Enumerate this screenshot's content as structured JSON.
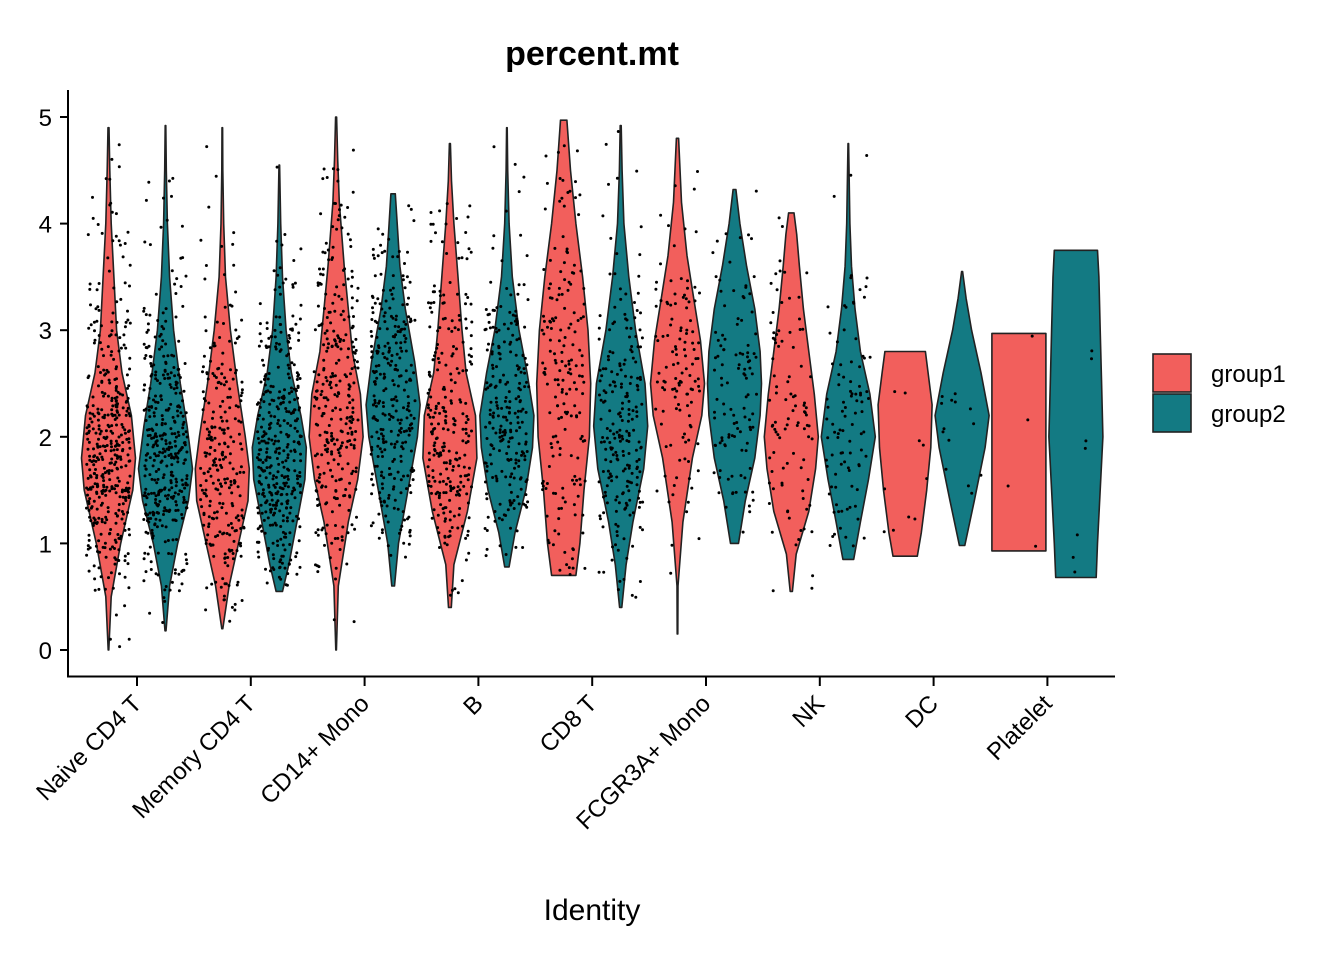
{
  "chart_data": {
    "type": "violin",
    "title": "percent.mt",
    "xlabel": "Identity",
    "ylabel": "",
    "ylim": [
      -0.25,
      5.3
    ],
    "yticks": [
      0,
      1,
      2,
      3,
      4,
      5
    ],
    "categories": [
      "Naive CD4 T",
      "Memory CD4 T",
      "CD14+ Mono",
      "B",
      "CD8 T",
      "FCGR3A+ Mono",
      "NK",
      "DC",
      "Platelet"
    ],
    "legend_position": "right",
    "grid": false,
    "series": [
      {
        "name": "group1",
        "color": "#F25F5C",
        "violins": [
          {
            "min": 0.0,
            "max": 4.9,
            "n": 420,
            "profile": [
              [
                0.0,
                0.01
              ],
              [
                0.5,
                0.1
              ],
              [
                1.0,
                0.45
              ],
              [
                1.5,
                0.9
              ],
              [
                1.8,
                1.0
              ],
              [
                2.2,
                0.85
              ],
              [
                2.6,
                0.5
              ],
              [
                3.0,
                0.3
              ],
              [
                3.5,
                0.2
              ],
              [
                4.0,
                0.1
              ],
              [
                4.5,
                0.05
              ],
              [
                4.9,
                0.02
              ]
            ]
          },
          {
            "min": 0.2,
            "max": 4.9,
            "n": 260,
            "profile": [
              [
                0.2,
                0.02
              ],
              [
                0.6,
                0.25
              ],
              [
                1.0,
                0.6
              ],
              [
                1.4,
                0.95
              ],
              [
                1.7,
                1.0
              ],
              [
                2.0,
                0.85
              ],
              [
                2.5,
                0.55
              ],
              [
                3.0,
                0.3
              ],
              [
                3.5,
                0.12
              ],
              [
                4.0,
                0.05
              ],
              [
                4.5,
                0.02
              ],
              [
                4.9,
                0.01
              ]
            ]
          },
          {
            "min": 0.0,
            "max": 5.0,
            "n": 300,
            "profile": [
              [
                0.0,
                0.01
              ],
              [
                0.6,
                0.08
              ],
              [
                1.2,
                0.45
              ],
              [
                1.6,
                0.8
              ],
              [
                2.0,
                1.0
              ],
              [
                2.4,
                0.9
              ],
              [
                2.8,
                0.6
              ],
              [
                3.2,
                0.45
              ],
              [
                3.6,
                0.3
              ],
              [
                4.2,
                0.12
              ],
              [
                4.6,
                0.06
              ],
              [
                5.0,
                0.02
              ]
            ]
          },
          {
            "min": 0.4,
            "max": 4.75,
            "n": 260,
            "profile": [
              [
                0.4,
                0.05
              ],
              [
                0.8,
                0.15
              ],
              [
                1.3,
                0.65
              ],
              [
                1.8,
                1.0
              ],
              [
                2.2,
                0.95
              ],
              [
                2.6,
                0.6
              ],
              [
                3.0,
                0.45
              ],
              [
                3.5,
                0.3
              ],
              [
                4.0,
                0.15
              ],
              [
                4.4,
                0.06
              ],
              [
                4.75,
                0.02
              ]
            ]
          },
          {
            "min": 0.7,
            "max": 4.97,
            "n": 180,
            "profile": [
              [
                0.7,
                0.45
              ],
              [
                1.0,
                0.6
              ],
              [
                1.5,
                0.75
              ],
              [
                2.0,
                0.95
              ],
              [
                2.5,
                1.0
              ],
              [
                3.0,
                0.9
              ],
              [
                3.5,
                0.7
              ],
              [
                4.0,
                0.45
              ],
              [
                4.5,
                0.25
              ],
              [
                4.97,
                0.12
              ]
            ]
          },
          {
            "min": 0.15,
            "max": 4.8,
            "n": 120,
            "profile": [
              [
                0.15,
                0.01
              ],
              [
                0.6,
                0.02
              ],
              [
                1.2,
                0.2
              ],
              [
                1.8,
                0.55
              ],
              [
                2.2,
                0.9
              ],
              [
                2.5,
                1.0
              ],
              [
                2.9,
                0.85
              ],
              [
                3.3,
                0.6
              ],
              [
                3.7,
                0.35
              ],
              [
                4.2,
                0.15
              ],
              [
                4.8,
                0.04
              ]
            ]
          },
          {
            "min": 0.55,
            "max": 4.1,
            "n": 95,
            "profile": [
              [
                0.55,
                0.04
              ],
              [
                0.9,
                0.18
              ],
              [
                1.3,
                0.65
              ],
              [
                1.7,
                0.9
              ],
              [
                2.0,
                1.0
              ],
              [
                2.4,
                0.85
              ],
              [
                2.8,
                0.65
              ],
              [
                3.2,
                0.45
              ],
              [
                3.6,
                0.3
              ],
              [
                3.9,
                0.2
              ],
              [
                4.1,
                0.1
              ]
            ]
          },
          {
            "min": 0.88,
            "max": 2.8,
            "n": 10,
            "profile": [
              [
                0.88,
                0.45
              ],
              [
                1.1,
                0.6
              ],
              [
                1.5,
                0.8
              ],
              [
                1.9,
                0.95
              ],
              [
                2.3,
                1.0
              ],
              [
                2.6,
                0.85
              ],
              [
                2.8,
                0.75
              ]
            ]
          },
          {
            "min": 0.93,
            "max": 2.97,
            "n": 4,
            "profile": [
              [
                0.93,
                1.0
              ],
              [
                2.97,
                1.0
              ]
            ]
          }
        ]
      },
      {
        "name": "group2",
        "color": "#137A83",
        "violins": [
          {
            "min": 0.18,
            "max": 4.92,
            "n": 380,
            "profile": [
              [
                0.18,
                0.02
              ],
              [
                0.6,
                0.15
              ],
              [
                1.0,
                0.45
              ],
              [
                1.4,
                0.85
              ],
              [
                1.7,
                1.0
              ],
              [
                2.1,
                0.8
              ],
              [
                2.5,
                0.55
              ],
              [
                3.0,
                0.3
              ],
              [
                3.5,
                0.15
              ],
              [
                4.0,
                0.07
              ],
              [
                4.5,
                0.03
              ],
              [
                4.92,
                0.01
              ]
            ]
          },
          {
            "min": 0.55,
            "max": 4.55,
            "n": 380,
            "profile": [
              [
                0.55,
                0.12
              ],
              [
                0.8,
                0.35
              ],
              [
                1.2,
                0.65
              ],
              [
                1.6,
                0.95
              ],
              [
                1.9,
                1.0
              ],
              [
                2.2,
                0.8
              ],
              [
                2.6,
                0.45
              ],
              [
                3.0,
                0.25
              ],
              [
                3.5,
                0.12
              ],
              [
                4.0,
                0.05
              ],
              [
                4.55,
                0.01
              ]
            ]
          },
          {
            "min": 0.6,
            "max": 4.28,
            "n": 290,
            "profile": [
              [
                0.6,
                0.05
              ],
              [
                1.0,
                0.2
              ],
              [
                1.5,
                0.55
              ],
              [
                2.0,
                0.9
              ],
              [
                2.3,
                1.0
              ],
              [
                2.7,
                0.8
              ],
              [
                3.2,
                0.45
              ],
              [
                3.6,
                0.25
              ],
              [
                4.0,
                0.15
              ],
              [
                4.28,
                0.08
              ]
            ]
          },
          {
            "min": 0.78,
            "max": 4.9,
            "n": 240,
            "profile": [
              [
                0.78,
                0.08
              ],
              [
                1.1,
                0.3
              ],
              [
                1.5,
                0.7
              ],
              [
                1.9,
                0.95
              ],
              [
                2.2,
                1.0
              ],
              [
                2.6,
                0.75
              ],
              [
                3.0,
                0.45
              ],
              [
                3.5,
                0.2
              ],
              [
                4.0,
                0.08
              ],
              [
                4.5,
                0.03
              ],
              [
                4.9,
                0.01
              ]
            ]
          },
          {
            "min": 0.4,
            "max": 4.92,
            "n": 220,
            "profile": [
              [
                0.4,
                0.04
              ],
              [
                0.8,
                0.2
              ],
              [
                1.2,
                0.45
              ],
              [
                1.7,
                0.85
              ],
              [
                2.1,
                1.0
              ],
              [
                2.5,
                0.9
              ],
              [
                3.0,
                0.55
              ],
              [
                3.5,
                0.3
              ],
              [
                4.0,
                0.12
              ],
              [
                4.5,
                0.05
              ],
              [
                4.92,
                0.02
              ]
            ]
          },
          {
            "min": 1.0,
            "max": 4.32,
            "n": 110,
            "profile": [
              [
                1.0,
                0.15
              ],
              [
                1.4,
                0.4
              ],
              [
                1.8,
                0.75
              ],
              [
                2.2,
                0.95
              ],
              [
                2.5,
                1.0
              ],
              [
                2.8,
                0.95
              ],
              [
                3.2,
                0.75
              ],
              [
                3.6,
                0.45
              ],
              [
                4.0,
                0.2
              ],
              [
                4.32,
                0.05
              ]
            ]
          },
          {
            "min": 0.85,
            "max": 4.75,
            "n": 95,
            "profile": [
              [
                0.85,
                0.2
              ],
              [
                1.2,
                0.45
              ],
              [
                1.6,
                0.75
              ],
              [
                2.0,
                1.0
              ],
              [
                2.4,
                0.8
              ],
              [
                2.8,
                0.45
              ],
              [
                3.2,
                0.25
              ],
              [
                3.6,
                0.12
              ],
              [
                4.0,
                0.06
              ],
              [
                4.75,
                0.01
              ]
            ]
          },
          {
            "min": 0.98,
            "max": 3.55,
            "n": 14,
            "profile": [
              [
                0.98,
                0.1
              ],
              [
                1.4,
                0.45
              ],
              [
                1.9,
                0.85
              ],
              [
                2.2,
                1.0
              ],
              [
                2.6,
                0.7
              ],
              [
                3.0,
                0.35
              ],
              [
                3.3,
                0.15
              ],
              [
                3.55,
                0.02
              ]
            ]
          },
          {
            "min": 0.68,
            "max": 3.75,
            "n": 7,
            "profile": [
              [
                0.68,
                0.75
              ],
              [
                1.0,
                0.8
              ],
              [
                1.5,
                0.9
              ],
              [
                2.0,
                1.0
              ],
              [
                2.5,
                0.95
              ],
              [
                3.0,
                0.9
              ],
              [
                3.5,
                0.85
              ],
              [
                3.75,
                0.8
              ]
            ]
          }
        ]
      }
    ]
  }
}
